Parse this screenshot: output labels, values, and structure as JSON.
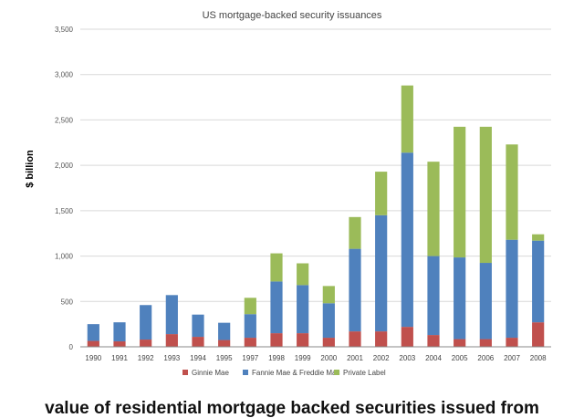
{
  "caption": "value of residential mortgage backed securities issued from",
  "chart_data": {
    "type": "bar",
    "stacked": true,
    "title": "US mortgage-backed security issuances",
    "xlabel": "",
    "ylabel": "$ billion",
    "ylim": [
      0,
      3500
    ],
    "yticks": [
      0,
      500,
      1000,
      1500,
      2000,
      2500,
      3000,
      3500
    ],
    "ytick_labels": [
      "0",
      "500",
      "1,000",
      "1,500",
      "2,000",
      "2,500",
      "3,000",
      "3,500"
    ],
    "grid": true,
    "legend_position": "bottom",
    "categories": [
      "1990",
      "1991",
      "1992",
      "1993",
      "1994",
      "1995",
      "1997",
      "1998",
      "1999",
      "2000",
      "2001",
      "2002",
      "2003",
      "2004",
      "2005",
      "2006",
      "2007",
      "2008"
    ],
    "series": [
      {
        "name": "Ginnie Mae",
        "color": "#c0504d",
        "values": [
          65,
          60,
          80,
          140,
          110,
          75,
          100,
          150,
          150,
          100,
          170,
          170,
          220,
          130,
          85,
          85,
          100,
          270
        ]
      },
      {
        "name": "Fannie Mae & Freddie Mac",
        "color": "#4f81bd",
        "values": [
          185,
          210,
          380,
          430,
          245,
          190,
          260,
          570,
          530,
          380,
          910,
          1280,
          1920,
          870,
          900,
          840,
          1080,
          900
        ]
      },
      {
        "name": "Private Label",
        "color": "#9bbb59",
        "values": [
          0,
          0,
          0,
          0,
          0,
          0,
          180,
          310,
          240,
          190,
          350,
          480,
          740,
          1040,
          1440,
          1500,
          1050,
          70
        ]
      }
    ]
  }
}
